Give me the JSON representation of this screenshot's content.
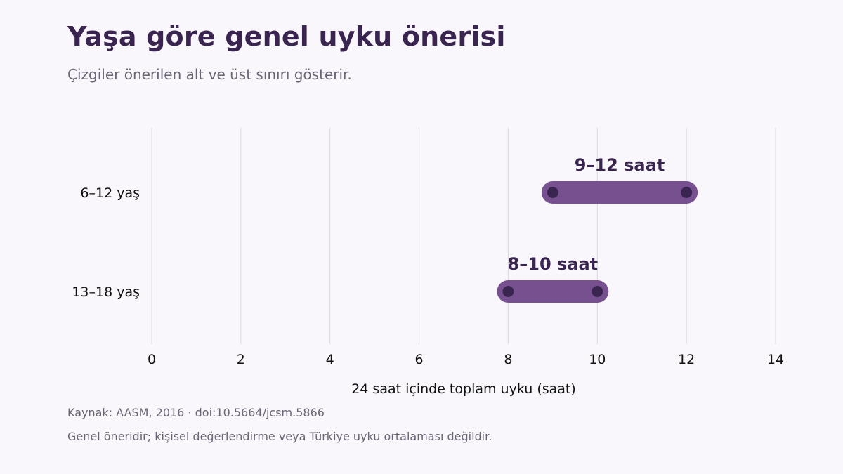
{
  "header": {
    "title": "Yaşa göre genel uyku önerisi",
    "subtitle": "Çizgiler önerilen alt ve üst sınırı gösterir."
  },
  "footer": {
    "source": "Kaynak: AASM, 2016 · doi:10.5664/jcsm.5866",
    "note": "Genel öneridir; kişisel değerlendirme veya Türkiye uyku ortalaması değildir."
  },
  "colors": {
    "background": "#f9f7fb",
    "range_bar": "#77518f",
    "endpoint_dot": "#3a2551",
    "label_text": "#3a2551",
    "grid": "#dcd9df",
    "axis_text": "#111111"
  },
  "chart_data": {
    "type": "range",
    "title": "Yaşa göre genel uyku önerisi",
    "subtitle": "Çizgiler önerilen alt ve üst sınırı gösterir.",
    "xlabel": "24 saat içinde toplam uyku (saat)",
    "ylabel": "",
    "xlim": [
      0,
      14
    ],
    "xticks": [
      0,
      2,
      4,
      6,
      8,
      10,
      12,
      14
    ],
    "grid": true,
    "categories": [
      "6–12 yaş",
      "13–18 yaş"
    ],
    "ranges": [
      {
        "category": "6–12 yaş",
        "low": 9,
        "high": 12,
        "label": "9–12 saat"
      },
      {
        "category": "13–18 yaş",
        "low": 8,
        "high": 10,
        "label": "8–10 saat"
      }
    ]
  }
}
